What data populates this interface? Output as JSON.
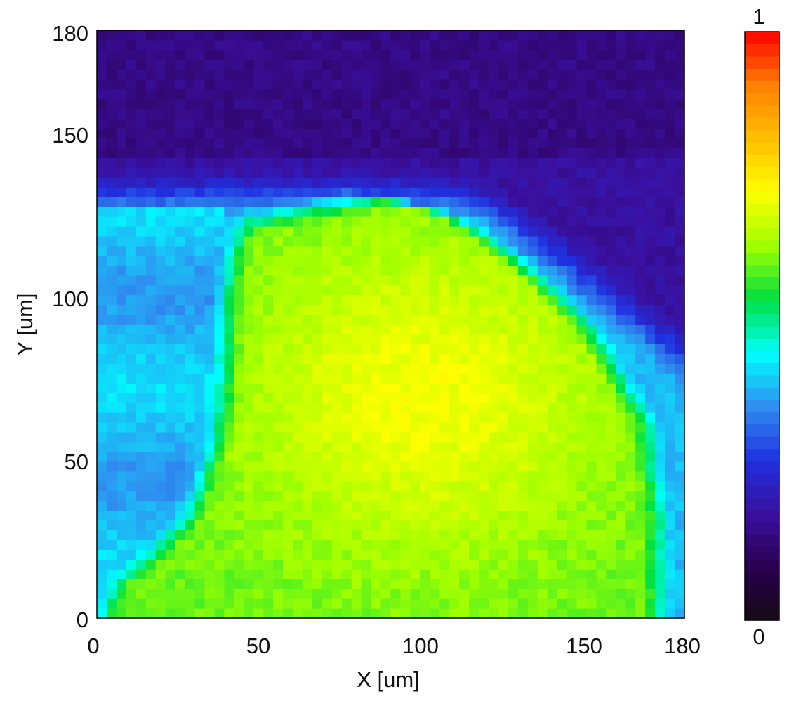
{
  "chart_data": {
    "type": "heatmap",
    "title": "",
    "xlabel": "X [um]",
    "ylabel": "Y [um]",
    "xlim": [
      0,
      180
    ],
    "ylim": [
      0,
      180
    ],
    "x_ticks": [
      0,
      50,
      100,
      150,
      180
    ],
    "y_ticks": [
      0,
      50,
      100,
      150,
      180
    ],
    "x_tick_labels": [
      "0",
      "50",
      "100",
      "150",
      "180"
    ],
    "y_tick_labels": [
      "0",
      "50",
      "100",
      "150",
      "180"
    ],
    "grid": false,
    "colorbar": {
      "position": "right",
      "min": 0,
      "max": 1,
      "min_label": "0",
      "max_label": "1",
      "colormap": [
        "#140a14",
        "#2a0050",
        "#3a10a0",
        "#2030e0",
        "#2f8ff0",
        "#00ffff",
        "#00e040",
        "#a0ff00",
        "#ffff00",
        "#ffc000",
        "#ff8000",
        "#ff0000"
      ]
    },
    "description_of_field": {
      "peak_value": 0.72,
      "peak_location": [
        100,
        68
      ],
      "low_region": "top of field (Y above ~140) near 0.2",
      "left_band": "cyan-blue strip along X below ~40, Y 20-125"
    }
  }
}
